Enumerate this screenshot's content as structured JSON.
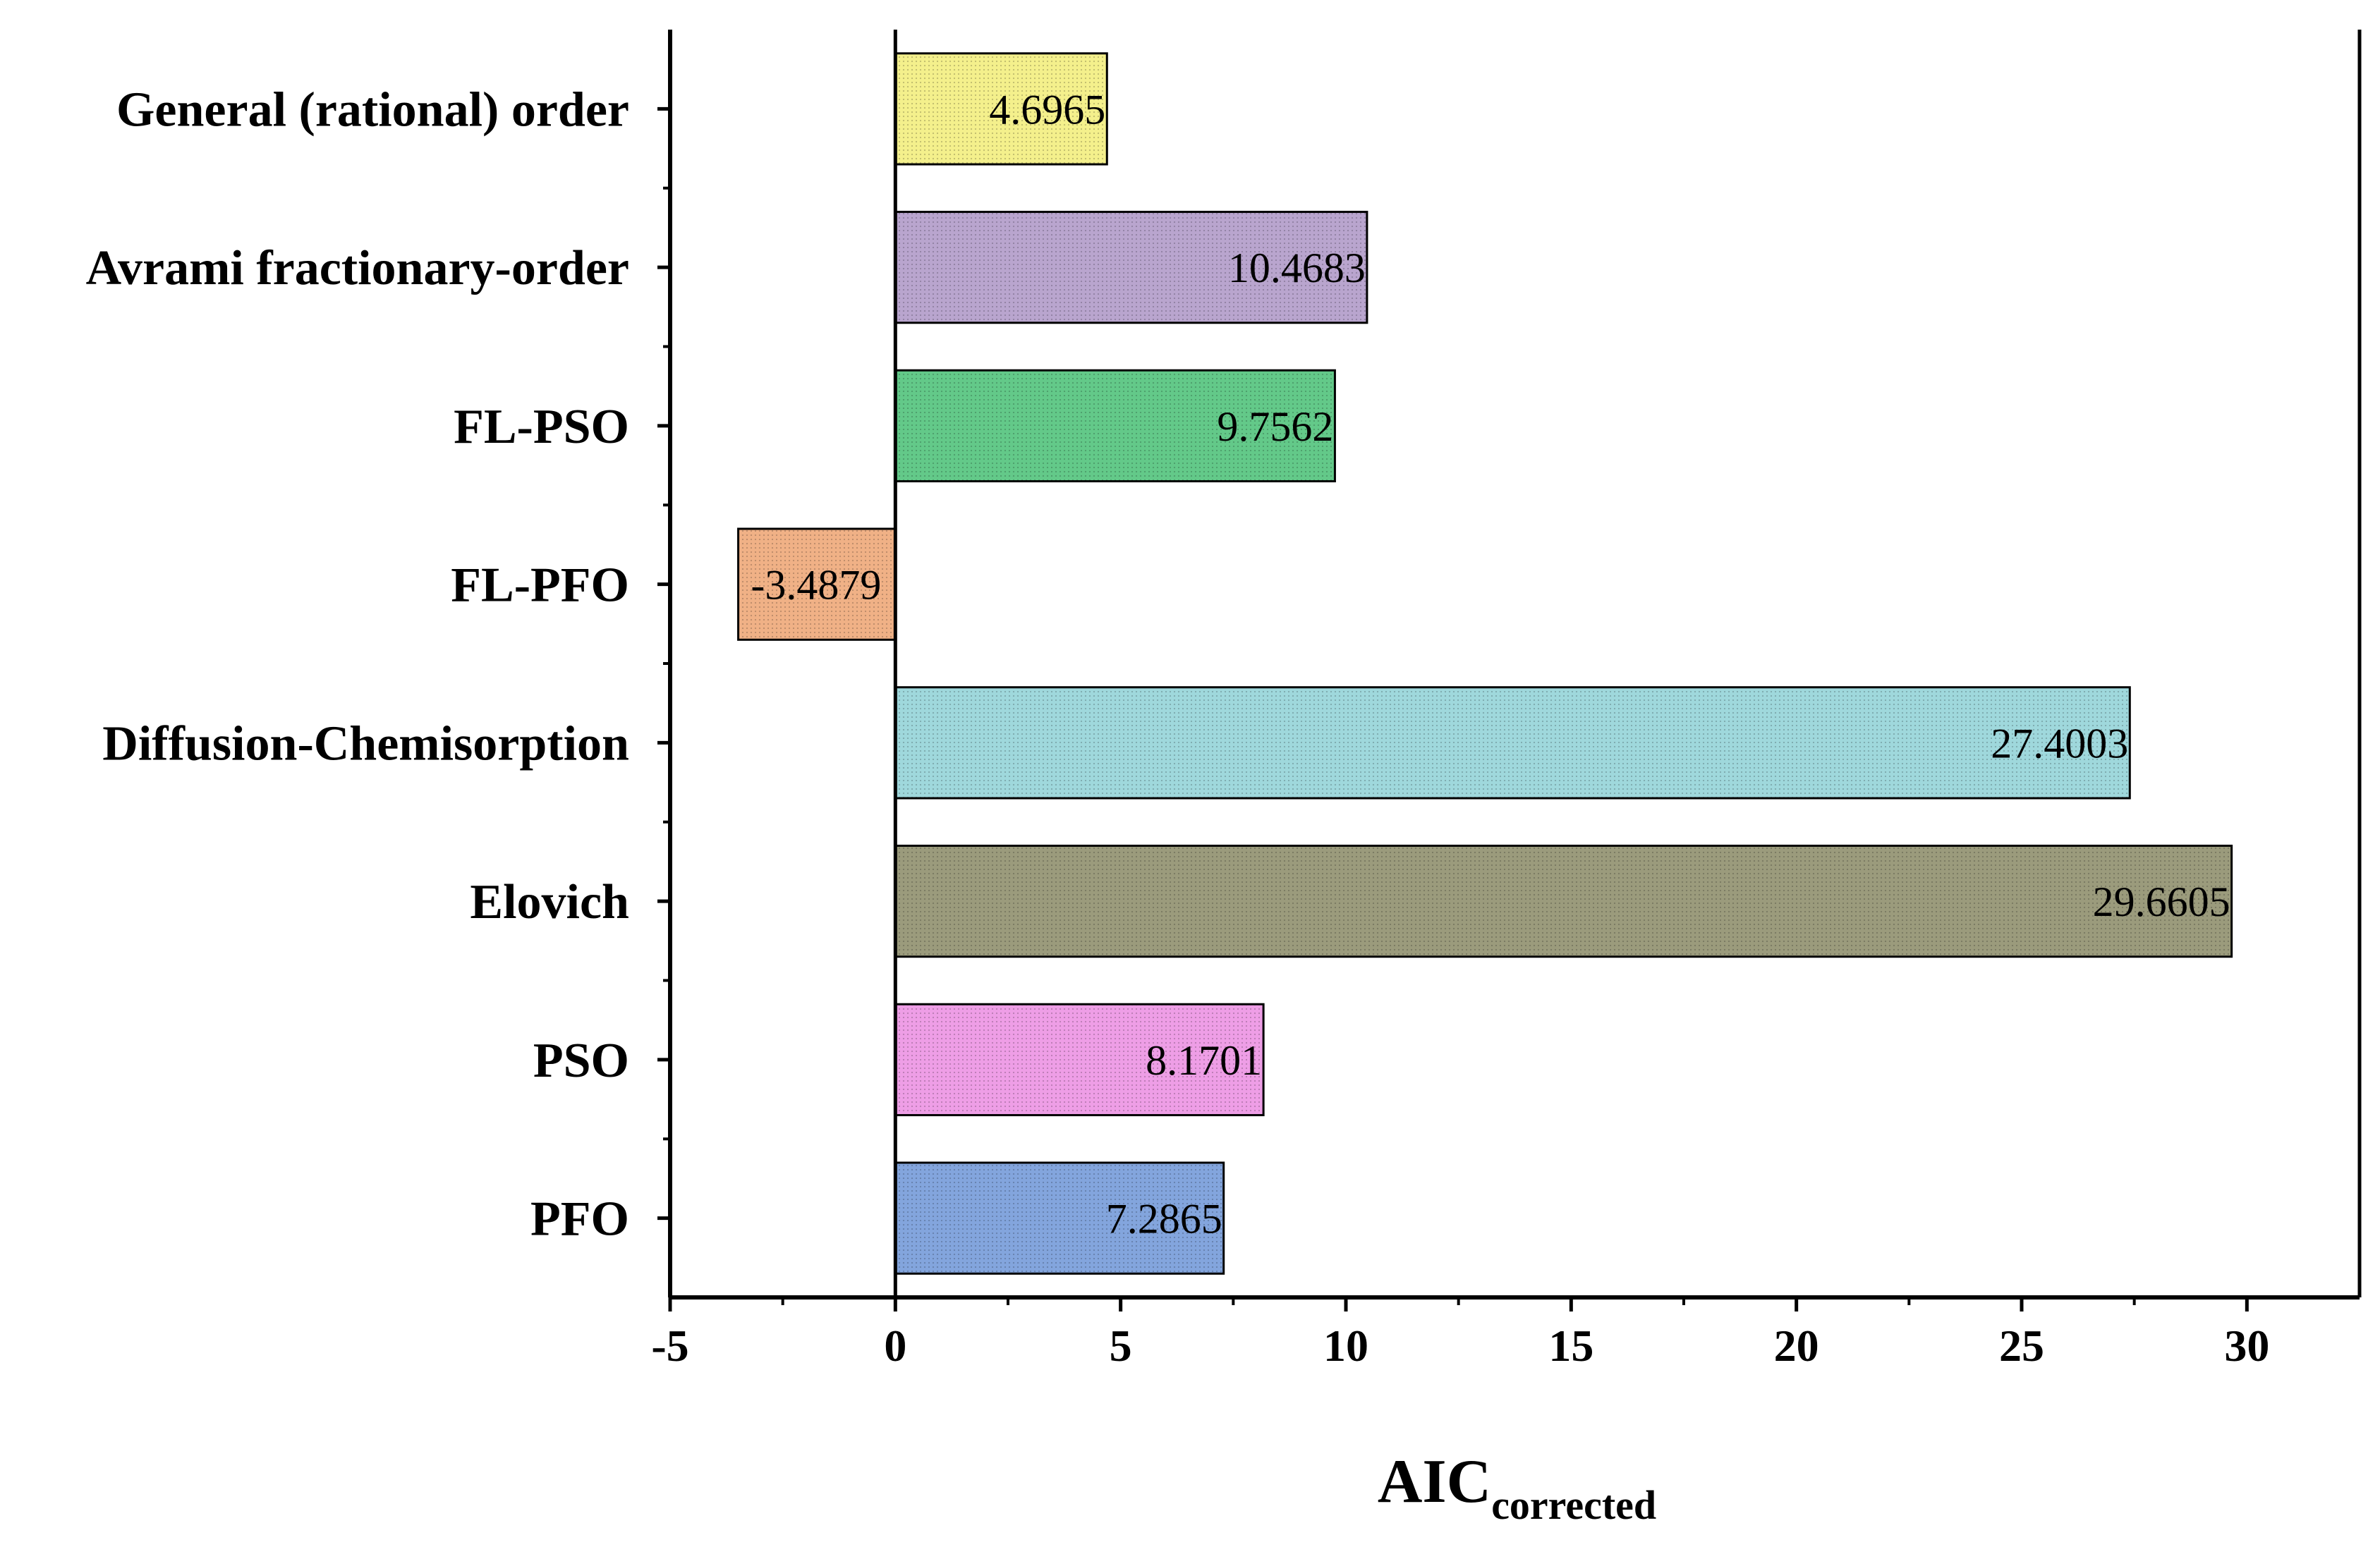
{
  "chart_data": {
    "type": "bar",
    "orientation": "horizontal",
    "categories": [
      "General (rational) order",
      "Avrami fractionary-order",
      "FL-PSO",
      "FL-PFO",
      "Diffusion-Chemisorption",
      "Elovich",
      "PSO",
      "PFO"
    ],
    "values": [
      4.6965,
      10.4683,
      9.7562,
      -3.4879,
      27.4003,
      29.6605,
      8.1701,
      7.2865
    ],
    "value_labels": [
      "4.6965",
      "10.4683",
      "9.7562",
      "-3.4879",
      "27.4003",
      "29.6605",
      "8.1701",
      "7.2865"
    ],
    "colors": [
      "#f4f08c",
      "#b9a5ce",
      "#63c989",
      "#f0b186",
      "#9fd8dc",
      "#9b9b7c",
      "#ee9ee6",
      "#83a5dd"
    ],
    "xlim": [
      -5,
      32.5
    ],
    "xticks": [
      -5,
      0,
      5,
      10,
      15,
      20,
      25,
      30
    ],
    "xtick_labels": [
      "-5",
      "0",
      "5",
      "10",
      "15",
      "20",
      "25",
      "30"
    ],
    "xlabel_main": "AIC",
    "xlabel_sub": "corrected",
    "ylabel": "",
    "title": "",
    "grid": false,
    "legend": false
  }
}
